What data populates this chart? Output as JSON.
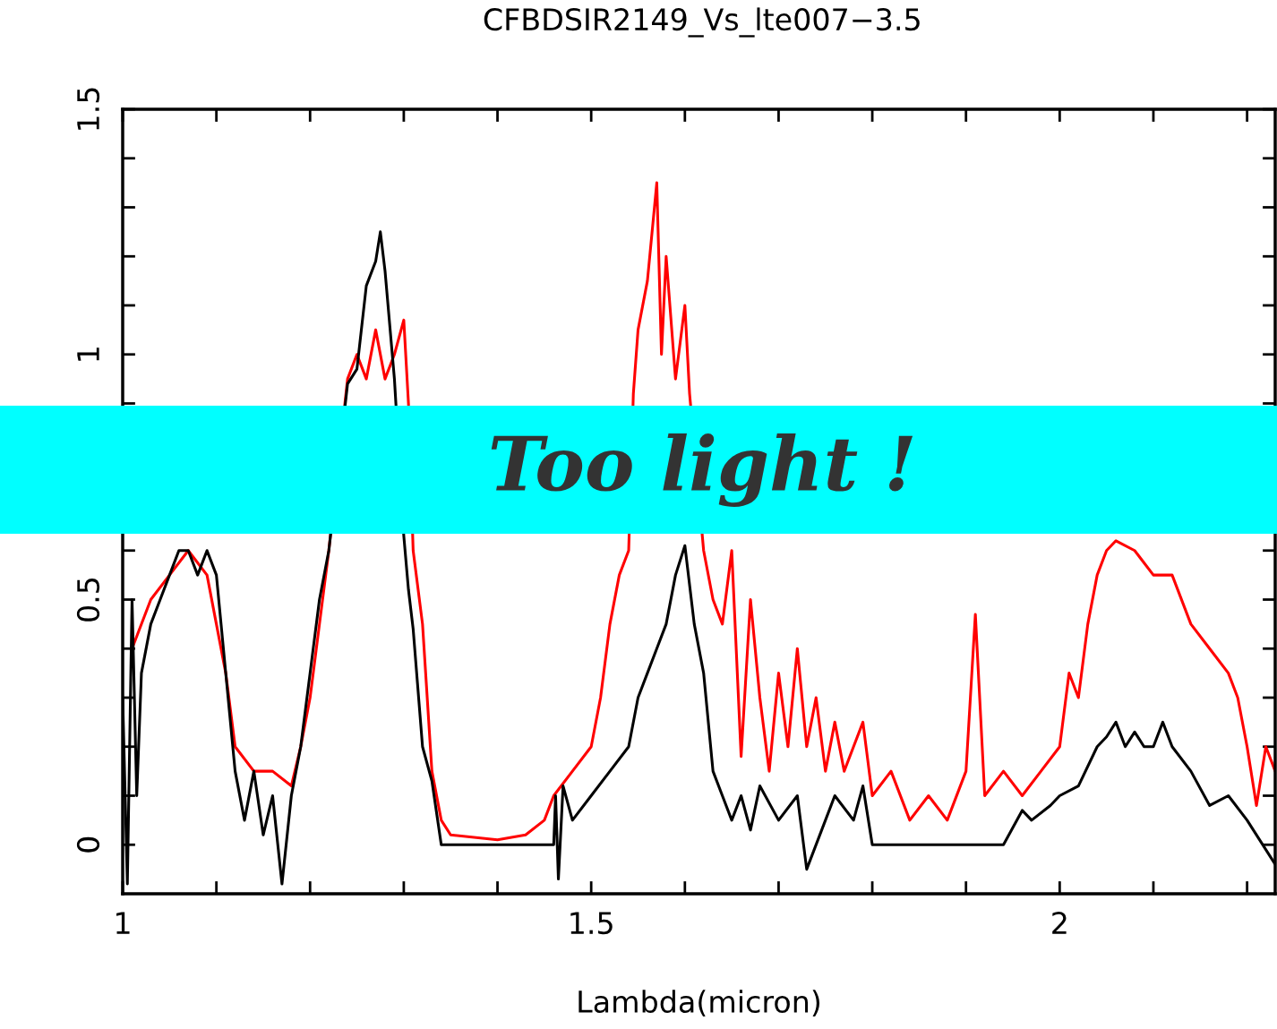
{
  "chart_data": {
    "type": "line",
    "title": "CFBDSIR2149_Vs_lte007−3.5",
    "xlabel": "Lambda(micron)",
    "xlim": [
      1,
      2.23
    ],
    "ylim": [
      -0.1,
      1.5
    ],
    "xticks": [
      1,
      {
        "value": 1.1,
        "label": null
      },
      {
        "value": 1.2,
        "label": null
      },
      {
        "value": 1.3,
        "label": null
      },
      {
        "value": 1.4,
        "label": null
      },
      1.5,
      {
        "value": 1.6,
        "label": null
      },
      {
        "value": 1.7,
        "label": null
      },
      {
        "value": 1.8,
        "label": null
      },
      {
        "value": 1.9,
        "label": null
      },
      2,
      {
        "value": 2.1,
        "label": null
      },
      {
        "value": 2.2,
        "label": null
      }
    ],
    "yticks": [
      0,
      {
        "value": 0.1,
        "label": null
      },
      {
        "value": 0.2,
        "label": null
      },
      {
        "value": 0.3,
        "label": null
      },
      {
        "value": 0.4,
        "label": null
      },
      0.5,
      {
        "value": 0.6,
        "label": null
      },
      {
        "value": 0.7,
        "label": null
      },
      {
        "value": 0.8,
        "label": null
      },
      {
        "value": 0.9,
        "label": null
      },
      1,
      {
        "value": 1.1,
        "label": null
      },
      {
        "value": 1.2,
        "label": null
      },
      {
        "value": 1.3,
        "label": null
      },
      {
        "value": 1.4,
        "label": null
      },
      1.5
    ],
    "annotations": [
      "Too light !"
    ],
    "series": [
      {
        "color": "#ff0000",
        "x": [
          1.01,
          1.03,
          1.05,
          1.07,
          1.09,
          1.1,
          1.11,
          1.12,
          1.14,
          1.16,
          1.18,
          1.19,
          1.2,
          1.21,
          1.22,
          1.24,
          1.25,
          1.26,
          1.27,
          1.28,
          1.29,
          1.3,
          1.305,
          1.31,
          1.32,
          1.33,
          1.34,
          1.35,
          1.4,
          1.43,
          1.45,
          1.46,
          1.48,
          1.5,
          1.51,
          1.52,
          1.53,
          1.54,
          1.545,
          1.55,
          1.56,
          1.57,
          1.575,
          1.58,
          1.59,
          1.6,
          1.605,
          1.62,
          1.63,
          1.64,
          1.65,
          1.66,
          1.67,
          1.68,
          1.69,
          1.7,
          1.71,
          1.72,
          1.73,
          1.74,
          1.75,
          1.76,
          1.77,
          1.78,
          1.79,
          1.8,
          1.82,
          1.84,
          1.86,
          1.88,
          1.9,
          1.91,
          1.92,
          1.94,
          1.96,
          1.98,
          2.0,
          2.01,
          2.02,
          2.03,
          2.04,
          2.05,
          2.06,
          2.08,
          2.1,
          2.12,
          2.14,
          2.16,
          2.18,
          2.19,
          2.2,
          2.21,
          2.22,
          2.23
        ],
        "values": [
          0.4,
          0.5,
          0.55,
          0.6,
          0.55,
          0.45,
          0.35,
          0.2,
          0.15,
          0.15,
          0.12,
          0.2,
          0.3,
          0.45,
          0.6,
          0.95,
          1.0,
          0.95,
          1.05,
          0.95,
          1.0,
          1.07,
          0.9,
          0.6,
          0.45,
          0.15,
          0.05,
          0.02,
          0.01,
          0.02,
          0.05,
          0.1,
          0.15,
          0.2,
          0.3,
          0.45,
          0.55,
          0.6,
          0.92,
          1.05,
          1.15,
          1.35,
          1.0,
          1.2,
          0.95,
          1.1,
          0.92,
          0.6,
          0.5,
          0.45,
          0.6,
          0.18,
          0.5,
          0.3,
          0.15,
          0.35,
          0.2,
          0.4,
          0.2,
          0.3,
          0.15,
          0.25,
          0.15,
          0.2,
          0.25,
          0.1,
          0.15,
          0.05,
          0.1,
          0.05,
          0.15,
          0.47,
          0.1,
          0.15,
          0.1,
          0.15,
          0.2,
          0.35,
          0.3,
          0.45,
          0.55,
          0.6,
          0.62,
          0.6,
          0.55,
          0.55,
          0.45,
          0.4,
          0.35,
          0.3,
          0.2,
          0.08,
          0.2,
          0.15
        ]
      },
      {
        "color": "#000000",
        "x": [
          1.0,
          1.005,
          1.01,
          1.015,
          1.02,
          1.03,
          1.04,
          1.05,
          1.06,
          1.07,
          1.08,
          1.09,
          1.1,
          1.11,
          1.12,
          1.13,
          1.14,
          1.15,
          1.16,
          1.17,
          1.18,
          1.19,
          1.2,
          1.21,
          1.22,
          1.24,
          1.25,
          1.26,
          1.27,
          1.275,
          1.28,
          1.29,
          1.3,
          1.305,
          1.31,
          1.315,
          1.32,
          1.33,
          1.34,
          1.46,
          1.462,
          1.465,
          1.47,
          1.48,
          1.5,
          1.52,
          1.54,
          1.55,
          1.56,
          1.57,
          1.58,
          1.59,
          1.6,
          1.61,
          1.62,
          1.63,
          1.64,
          1.65,
          1.66,
          1.67,
          1.68,
          1.7,
          1.72,
          1.73,
          1.75,
          1.76,
          1.78,
          1.79,
          1.8,
          1.94,
          1.96,
          1.97,
          1.99,
          2.0,
          2.02,
          2.04,
          2.05,
          2.06,
          2.07,
          2.08,
          2.09,
          2.1,
          2.11,
          2.12,
          2.14,
          2.16,
          2.18,
          2.2,
          2.23
        ],
        "values": [
          0.3,
          -0.08,
          0.5,
          0.1,
          0.35,
          0.45,
          0.5,
          0.55,
          0.6,
          0.6,
          0.55,
          0.6,
          0.55,
          0.35,
          0.15,
          0.05,
          0.15,
          0.02,
          0.1,
          -0.08,
          0.1,
          0.2,
          0.35,
          0.5,
          0.6,
          0.94,
          0.97,
          1.14,
          1.19,
          1.25,
          1.17,
          0.95,
          0.63,
          0.52,
          0.44,
          0.32,
          0.2,
          0.13,
          0,
          0,
          0.1,
          -0.07,
          0.12,
          0.05,
          0.1,
          0.15,
          0.2,
          0.3,
          0.35,
          0.4,
          0.45,
          0.55,
          0.61,
          0.45,
          0.35,
          0.15,
          0.1,
          0.05,
          0.1,
          0.03,
          0.12,
          0.05,
          0.1,
          -0.05,
          0.05,
          0.1,
          0.05,
          0.12,
          0,
          0,
          0.07,
          0.05,
          0.08,
          0.1,
          0.12,
          0.2,
          0.22,
          0.25,
          0.2,
          0.23,
          0.2,
          0.2,
          0.25,
          0.2,
          0.15,
          0.08,
          0.1,
          0.05,
          -0.04
        ]
      }
    ]
  }
}
